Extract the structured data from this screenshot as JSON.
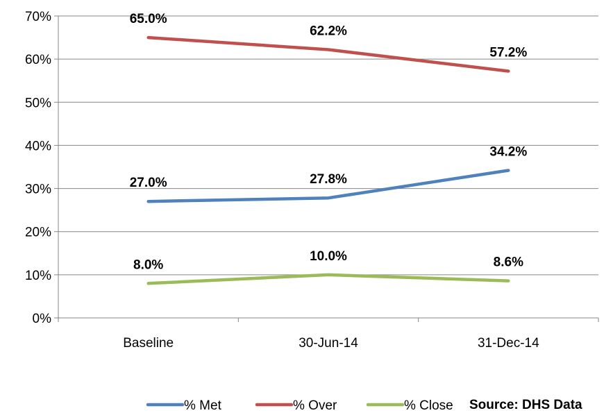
{
  "chart_data": {
    "type": "line",
    "categories": [
      "Baseline",
      "30-Jun-14",
      "31-Dec-14"
    ],
    "series": [
      {
        "name": "% Met",
        "values": [
          27.0,
          27.8,
          34.2
        ],
        "labels": [
          "27.0%",
          "27.8%",
          "34.2%"
        ],
        "color": "#4f81bd"
      },
      {
        "name": "% Over",
        "values": [
          65.0,
          62.2,
          57.2
        ],
        "labels": [
          "65.0%",
          "62.2%",
          "57.2%"
        ],
        "color": "#c0504d"
      },
      {
        "name": "% Close",
        "values": [
          8.0,
          10.0,
          8.6
        ],
        "labels": [
          "8.0%",
          "10.0%",
          "8.6%"
        ],
        "color": "#9bbb59"
      }
    ],
    "yticks": [
      0,
      10,
      20,
      30,
      40,
      50,
      60,
      70
    ],
    "ytick_labels": [
      "0%",
      "10%",
      "20%",
      "30%",
      "40%",
      "50%",
      "60%",
      "70%"
    ],
    "ylim": [
      0,
      70
    ],
    "grid": true,
    "legend_position": "bottom",
    "source_note": "Source: DHS Data"
  }
}
